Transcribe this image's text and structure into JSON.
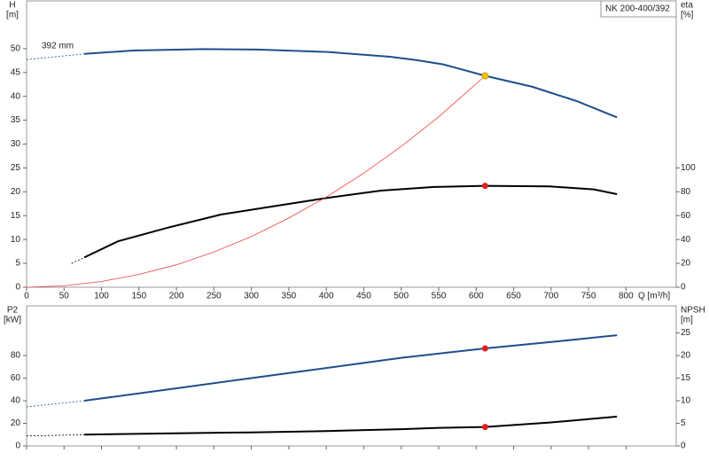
{
  "chart_data": [
    {
      "type": "line",
      "title": "NK 200-400/392",
      "y_label": "H",
      "y_unit": "[m]",
      "y2_label": "eta",
      "y2_unit": "[%]",
      "x_label": "Q [m³/h]",
      "annotation": "392 mm",
      "show_xtick_labels": true,
      "xlim": [
        0,
        867
      ],
      "xticks": [
        0,
        50,
        100,
        150,
        200,
        250,
        300,
        350,
        400,
        450,
        500,
        550,
        600,
        650,
        700,
        750,
        800
      ],
      "ylim": [
        0,
        60
      ],
      "yticks": [
        0,
        5,
        10,
        15,
        20,
        25,
        30,
        35,
        40,
        45,
        50
      ],
      "y2lim": [
        0,
        240
      ],
      "y2ticks": [
        0,
        20,
        40,
        60,
        80,
        100
      ],
      "series": [
        {
          "kind": "line",
          "line_style": "dashed",
          "color": "#1f4e8c",
          "axis": "y",
          "x": [
            0,
            77
          ],
          "values": [
            47.7,
            48.9
          ]
        },
        {
          "kind": "line",
          "line_style": "solid",
          "color": "#1f4e8c",
          "axis": "y",
          "x": [
            77,
            142,
            237,
            308,
            402,
            485,
            520,
            556,
            612,
            675,
            734,
            788
          ],
          "values": [
            48.9,
            49.6,
            49.9,
            49.8,
            49.3,
            48.3,
            47.6,
            46.7,
            44.3,
            42,
            39,
            35.6
          ]
        },
        {
          "kind": "line",
          "line_style": "dashed",
          "color": "#000000",
          "axis": "y2",
          "x": [
            60,
            77
          ],
          "values": [
            20,
            25
          ]
        },
        {
          "kind": "line",
          "line_style": "solid",
          "color": "#000000",
          "axis": "y2",
          "x": [
            77,
            122,
            189,
            260,
            331,
            402,
            473,
            544,
            612,
            698,
            757,
            788
          ],
          "values": [
            25,
            38.5,
            50,
            61,
            68,
            75,
            81,
            84,
            85,
            84.5,
            82,
            78
          ]
        },
        {
          "kind": "thin",
          "line_style": "solid",
          "color": "#f04040",
          "axis": "y",
          "x": [
            0,
            50,
            100,
            150,
            200,
            250,
            300,
            350,
            400,
            450,
            500,
            550,
            612
          ],
          "values": [
            0,
            0.3,
            1.2,
            2.7,
            4.7,
            7.4,
            10.6,
            14.5,
            18.9,
            23.9,
            29.5,
            35.7,
            44.3
          ]
        },
        {
          "kind": "point",
          "color": "#f5c400",
          "axis": "y",
          "x": [
            612
          ],
          "values": [
            44.3
          ]
        },
        {
          "kind": "point",
          "color": "#e02020",
          "axis": "y2",
          "x": [
            612
          ],
          "values": [
            85
          ]
        }
      ]
    },
    {
      "type": "line",
      "y_label": "P2",
      "y_unit": "[kW]",
      "y2_label": "NPSH",
      "y2_unit": "[m]",
      "show_xtick_labels": false,
      "xlim": [
        0,
        867
      ],
      "xticks": [
        0,
        50,
        100,
        150,
        200,
        250,
        300,
        350,
        400,
        450,
        500,
        550,
        600,
        650,
        700,
        750,
        800
      ],
      "ylim": [
        0,
        124
      ],
      "yticks": [
        0,
        20,
        40,
        60,
        80
      ],
      "y2lim": [
        0,
        31
      ],
      "y2ticks": [
        0,
        5,
        10,
        15,
        20,
        25
      ],
      "series": [
        {
          "kind": "line",
          "line_style": "dashed",
          "color": "#1f4e8c",
          "axis": "y",
          "x": [
            0,
            77
          ],
          "values": [
            34.5,
            40
          ]
        },
        {
          "kind": "line",
          "line_style": "solid",
          "color": "#1f4e8c",
          "axis": "y",
          "x": [
            77,
            200,
            300,
            400,
            500,
            612,
            700,
            788
          ],
          "values": [
            40,
            51,
            60,
            69,
            78,
            86.3,
            92,
            98
          ]
        },
        {
          "kind": "line",
          "line_style": "dashed",
          "color": "#000000",
          "axis": "y2",
          "x": [
            0,
            77
          ],
          "values": [
            2.2,
            2.5
          ]
        },
        {
          "kind": "line",
          "line_style": "solid",
          "color": "#000000",
          "axis": "y2",
          "x": [
            77,
            200,
            300,
            400,
            500,
            550,
            612,
            700,
            788
          ],
          "values": [
            2.5,
            2.8,
            3.0,
            3.3,
            3.7,
            4.0,
            4.2,
            5.2,
            6.5
          ]
        },
        {
          "kind": "point",
          "color": "#e02020",
          "axis": "y",
          "x": [
            612
          ],
          "values": [
            86.3
          ]
        },
        {
          "kind": "point",
          "color": "#e02020",
          "axis": "y2",
          "x": [
            612
          ],
          "values": [
            4.2
          ]
        }
      ]
    }
  ]
}
